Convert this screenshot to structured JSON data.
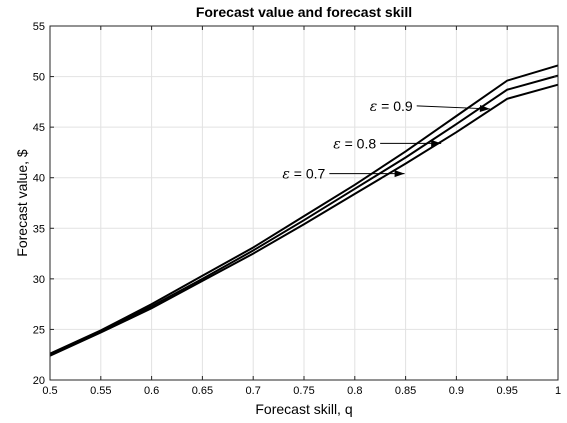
{
  "chart_data": {
    "type": "line",
    "title": "Forecast value and forecast skill",
    "xlabel": "Forecast skill, q",
    "ylabel": "Forecast value, $",
    "xlim": [
      0.5,
      1.0
    ],
    "ylim": [
      20,
      55
    ],
    "xticks": [
      0.5,
      0.55,
      0.6,
      0.65,
      0.7,
      0.75,
      0.8,
      0.85,
      0.9,
      0.95,
      1
    ],
    "xtick_labels": [
      "0.5",
      "0.55",
      "0.6",
      "0.65",
      "0.7",
      "0.75",
      "0.8",
      "0.85",
      "0.9",
      "0.95",
      "1"
    ],
    "yticks": [
      20,
      25,
      30,
      35,
      40,
      45,
      50,
      55
    ],
    "ytick_labels": [
      "20",
      "25",
      "30",
      "35",
      "40",
      "45",
      "50",
      "55"
    ],
    "grid": true,
    "x": [
      0.5,
      0.55,
      0.6,
      0.65,
      0.7,
      0.75,
      0.8,
      0.85,
      0.9,
      0.95,
      1.0
    ],
    "series": [
      {
        "values": [
          22.6,
          24.9,
          27.5,
          30.3,
          33.1,
          36.2,
          39.3,
          42.6,
          46.1,
          49.6,
          51.1
        ]
      },
      {
        "values": [
          22.5,
          24.8,
          27.3,
          30.0,
          32.8,
          35.8,
          38.9,
          42.0,
          45.3,
          48.7,
          50.1
        ]
      },
      {
        "values": [
          22.4,
          24.7,
          27.1,
          29.8,
          32.5,
          35.4,
          38.4,
          41.4,
          44.5,
          47.8,
          49.2
        ]
      }
    ],
    "annotations": [
      {
        "symbol": "ε",
        "text": " = 0.9",
        "x": 0.857,
        "y": 47.1,
        "arrow_to": [
          0.933,
          46.8
        ]
      },
      {
        "symbol": "ε",
        "text": " = 0.8",
        "x": 0.821,
        "y": 43.4,
        "arrow_to": [
          0.885,
          43.4
        ]
      },
      {
        "symbol": "ε",
        "text": " = 0.7",
        "x": 0.771,
        "y": 40.4,
        "arrow_to": [
          0.849,
          40.4
        ]
      }
    ]
  }
}
